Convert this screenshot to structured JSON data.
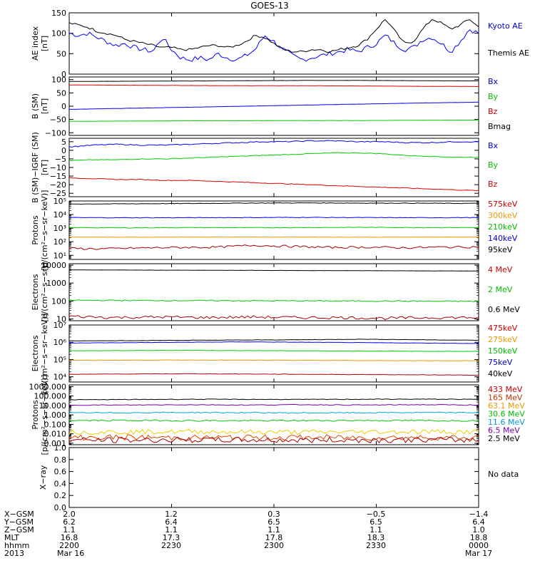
{
  "title": "GOES-13",
  "chart_data": [
    {
      "id": "ae",
      "type": "line",
      "ylabel": [
        "AE index",
        "[nT]"
      ],
      "ylim": [
        0,
        150
      ],
      "yticks": [
        {
          "v": 0,
          "t": "0"
        },
        {
          "v": 50,
          "t": "50"
        },
        {
          "v": 100,
          "t": "100"
        },
        {
          "v": 150,
          "t": "150"
        }
      ],
      "log": false,
      "legend": [
        {
          "text": "Kyoto AE",
          "color": "#0000cc"
        },
        {
          "text": "Themis AE",
          "color": "#000000"
        }
      ],
      "series": [
        {
          "name": "Kyoto AE",
          "color": "#0000ff",
          "values": [
            100,
            95,
            100,
            90,
            80,
            70,
            75,
            65,
            60,
            55,
            90,
            60,
            40,
            35,
            40,
            35,
            50,
            40,
            35,
            45,
            60,
            95,
            80,
            60,
            45,
            35,
            40,
            45,
            50,
            55,
            60,
            55,
            65,
            75,
            95,
            75,
            60,
            65,
            85,
            90,
            75,
            55,
            80,
            110,
            100
          ],
          "noise": 6
        },
        {
          "name": "Themis AE",
          "color": "#000000",
          "values": [
            125,
            120,
            115,
            105,
            100,
            95,
            85,
            80,
            75,
            70,
            65,
            65,
            60,
            60,
            65,
            70,
            70,
            65,
            70,
            80,
            95,
            90,
            75,
            60,
            55,
            55,
            60,
            60,
            55,
            60,
            65,
            70,
            85,
            110,
            135,
            105,
            75,
            80,
            110,
            135,
            125,
            110,
            120,
            135,
            115
          ],
          "noise": 3
        }
      ]
    },
    {
      "id": "b",
      "type": "line",
      "ylabel": [
        "B (SM)",
        "[nT]"
      ],
      "ylim": [
        -110,
        110
      ],
      "yticks": [
        {
          "v": -100,
          "t": "−100"
        },
        {
          "v": -50,
          "t": "−50"
        },
        {
          "v": 0,
          "t": "0"
        },
        {
          "v": 50,
          "t": "50"
        },
        {
          "v": 100,
          "t": "100"
        }
      ],
      "log": false,
      "legend": [
        {
          "text": "Bx",
          "color": "#0000cc"
        },
        {
          "text": "By",
          "color": "#00bb00"
        },
        {
          "text": "Bz",
          "color": "#cc0000"
        },
        {
          "text": "Bmag",
          "color": "#000000"
        }
      ],
      "series": [
        {
          "name": "Bmag",
          "color": "#000000",
          "values": [
            93,
            94,
            95,
            96,
            97,
            97,
            96,
            95
          ],
          "noise": 0.3
        },
        {
          "name": "Bz",
          "color": "#dd0000",
          "values": [
            80,
            79,
            78,
            77,
            77,
            76,
            75,
            74
          ],
          "noise": 0.3
        },
        {
          "name": "Bx",
          "color": "#0000ff",
          "values": [
            -12,
            -8,
            -4,
            0,
            4,
            8,
            12,
            15
          ],
          "noise": 0.3
        },
        {
          "name": "By",
          "color": "#00cc00",
          "values": [
            -57,
            -56,
            -55,
            -55,
            -54,
            -54,
            -53,
            -52
          ],
          "noise": 0.3
        }
      ]
    },
    {
      "id": "bdiff",
      "type": "line",
      "ylabel": [
        "B (SM)−IGRF (SM)",
        "[nT]"
      ],
      "ylim": [
        -27,
        7
      ],
      "yticks": [
        {
          "v": 5,
          "t": "5"
        },
        {
          "v": 0,
          "t": "0"
        },
        {
          "v": -5,
          "t": "−5"
        },
        {
          "v": -10,
          "t": "−10"
        },
        {
          "v": -15,
          "t": "−15"
        },
        {
          "v": -20,
          "t": "−20"
        },
        {
          "v": -25,
          "t": "−25"
        }
      ],
      "log": false,
      "legend": [
        {
          "text": "Bx",
          "color": "#0000cc"
        },
        {
          "text": "By",
          "color": "#00bb00"
        },
        {
          "text": "Bz",
          "color": "#cc0000"
        }
      ],
      "series": [
        {
          "name": "Bx",
          "color": "#0000ff",
          "values": [
            2,
            3,
            3.5,
            3,
            3,
            3.5,
            4,
            4.5,
            5,
            5,
            5.5,
            5.5,
            5,
            5,
            4.5,
            4.5,
            5,
            5
          ],
          "noise": 0.3
        },
        {
          "name": "By",
          "color": "#00cc00",
          "values": [
            -6,
            -5.5,
            -5.5,
            -5,
            -5,
            -4.5,
            -4,
            -3.5,
            -3,
            -2.5,
            -2,
            -1.5,
            -1.5,
            -2,
            -3,
            -3.5,
            -4,
            -4
          ],
          "noise": 0.2
        },
        {
          "name": "Bz",
          "color": "#dd0000",
          "values": [
            -16,
            -16.5,
            -17,
            -17,
            -17.5,
            -17.5,
            -18,
            -18.5,
            -19,
            -19.5,
            -20,
            -20.5,
            -21,
            -21.5,
            -22,
            -22.5,
            -23,
            -23.5
          ],
          "noise": 0.2
        }
      ]
    },
    {
      "id": "protons1",
      "type": "line",
      "ylabel": [
        "Protons",
        "[p/(cm²−s−sr−keV)]"
      ],
      "ylim": [
        5,
        100000
      ],
      "yticks": [
        {
          "v": 10,
          "t": "10¹"
        },
        {
          "v": 100,
          "t": "10²"
        },
        {
          "v": 1000,
          "t": "10³"
        },
        {
          "v": 10000,
          "t": "10⁴"
        },
        {
          "v": 100000,
          "t": "10⁵"
        }
      ],
      "log": true,
      "legend": [
        {
          "text": "575keV",
          "color": "#cc0000"
        },
        {
          "text": "300keV",
          "color": "#ee9900"
        },
        {
          "text": "210keV",
          "color": "#00bb00"
        },
        {
          "text": "140keV",
          "color": "#0000cc"
        },
        {
          "text": "95keV",
          "color": "#000000"
        }
      ],
      "series": [
        {
          "name": "95keV",
          "color": "#000000",
          "values": [
            60000,
            62000,
            65000,
            70000,
            72000,
            70000,
            68000,
            66000
          ],
          "noise": 0.02
        },
        {
          "name": "140keV",
          "color": "#0000ff",
          "values": [
            6000,
            5800,
            5900,
            6000,
            6200,
            6000,
            5900,
            6000
          ],
          "noise": 0.02
        },
        {
          "name": "210keV",
          "color": "#00cc00",
          "values": [
            1100,
            1050,
            1100,
            1080,
            1100,
            1150,
            1100,
            1100
          ],
          "noise": 0.02
        },
        {
          "name": "300keV",
          "color": "#ee9900",
          "values": [
            220,
            215,
            220,
            225,
            220,
            215,
            220,
            220
          ],
          "noise": 0.01
        },
        {
          "name": "575keV",
          "color": "#aa0000",
          "values": [
            32,
            30,
            35,
            38,
            40,
            55,
            45,
            38,
            40,
            36,
            40,
            42
          ],
          "noise": 0.08
        }
      ]
    },
    {
      "id": "electrons1",
      "type": "line",
      "ylabel": [
        "Electrons",
        "[e/(cm²−s−sr)]"
      ],
      "ylim": [
        8,
        12000
      ],
      "yticks": [
        {
          "v": 10,
          "t": "10"
        },
        {
          "v": 100,
          "t": "100"
        },
        {
          "v": 1000,
          "t": "1000"
        },
        {
          "v": 10000,
          "t": "10000"
        }
      ],
      "log": true,
      "legend": [
        {
          "text": "4 MeV",
          "color": "#cc0000"
        },
        {
          "text": "2 MeV",
          "color": "#00bb00"
        },
        {
          "text": "0.6 MeV",
          "color": "#000000"
        }
      ],
      "series": [
        {
          "name": "0.6 MeV",
          "color": "#000000",
          "values": [
            5400,
            5300,
            5200,
            5100,
            5000,
            4900,
            4800,
            4700
          ],
          "noise": 0.005
        },
        {
          "name": "2 MeV",
          "color": "#00cc00",
          "values": [
            110,
            108,
            106,
            104,
            102,
            100,
            98,
            96
          ],
          "noise": 0.03
        },
        {
          "name": "4 MeV",
          "color": "#aa0000",
          "values": [
            14,
            12,
            13,
            12,
            13,
            12,
            12,
            11,
            12,
            12
          ],
          "noise": 0.08
        }
      ]
    },
    {
      "id": "electrons2",
      "type": "line",
      "ylabel": [
        "Electrons",
        "[e/(cm²−s−sr−keV)]"
      ],
      "ylim": [
        5000,
        10000000
      ],
      "yticks": [
        {
          "v": 10000,
          "t": "10⁴"
        },
        {
          "v": 100000,
          "t": "10⁵"
        },
        {
          "v": 1000000,
          "t": "10⁶"
        },
        {
          "v": 10000000,
          "t": "10⁷"
        }
      ],
      "log": true,
      "legend": [
        {
          "text": "475keV",
          "color": "#cc0000"
        },
        {
          "text": "275keV",
          "color": "#ee9900"
        },
        {
          "text": "150keV",
          "color": "#00bb00"
        },
        {
          "text": "75keV",
          "color": "#0000cc"
        },
        {
          "text": "40keV",
          "color": "#000000"
        }
      ],
      "series": [
        {
          "name": "40keV",
          "color": "#000000",
          "values": [
            1200000,
            1250000,
            1300000,
            1350000,
            1400000,
            1500000,
            1400000,
            1300000
          ],
          "noise": 0.01
        },
        {
          "name": "75keV",
          "color": "#0000ff",
          "values": [
            900000,
            950000,
            1000000,
            1050000,
            1000000,
            950000,
            900000,
            850000
          ],
          "noise": 0.01
        },
        {
          "name": "150keV",
          "color": "#00cc00",
          "values": [
            320000,
            330000,
            340000,
            330000,
            320000,
            310000,
            300000,
            300000
          ],
          "noise": 0.01
        },
        {
          "name": "275keV",
          "color": "#ee9900",
          "values": [
            90000,
            92000,
            94000,
            92000,
            90000,
            88000,
            86000,
            85000
          ],
          "noise": 0.01
        },
        {
          "name": "475keV",
          "color": "#aa0000",
          "values": [
            14000,
            14500,
            15000,
            14500,
            14000,
            13500,
            13000,
            12500
          ],
          "noise": 0.01
        }
      ]
    },
    {
      "id": "protons2",
      "type": "line",
      "ylabel": [
        "Protons",
        "[p/(cm²−s−sr−keV)]"
      ],
      "ylim": [
        0.0007,
        1500
      ],
      "yticks": [
        {
          "v": 0.001,
          "t": "0.001"
        },
        {
          "v": 0.01,
          "t": "0.010"
        },
        {
          "v": 0.1,
          "t": "0.100"
        },
        {
          "v": 1,
          "t": "1.000"
        },
        {
          "v": 10,
          "t": "10.000"
        },
        {
          "v": 100,
          "t": "100.000"
        },
        {
          "v": 1000,
          "t": "1000.000"
        }
      ],
      "log": true,
      "legend": [
        {
          "text": "433 MeV",
          "color": "#cc0000"
        },
        {
          "text": "165 MeV",
          "color": "#cc3300"
        },
        {
          "text": "63.1 MeV",
          "color": "#ee9900"
        },
        {
          "text": "30.6 MeV",
          "color": "#00bb00"
        },
        {
          "text": "11.6 MeV",
          "color": "#0099dd"
        },
        {
          "text": "6.5 MeV",
          "color": "#7700aa"
        },
        {
          "text": "2.5 MeV",
          "color": "#000000"
        }
      ],
      "series": [
        {
          "name": "2.5 MeV",
          "color": "#000000",
          "values": [
            40,
            42,
            45,
            44,
            43,
            45,
            46,
            44
          ],
          "noise": 0.03
        },
        {
          "name": "6.5 MeV",
          "color": "#7700bb",
          "values": [
            11,
            11,
            12,
            11,
            12,
            11,
            12,
            11
          ],
          "noise": 0.04
        },
        {
          "name": "11.6 MeV",
          "color": "#00aadd",
          "values": [
            1.6,
            1.7,
            1.8,
            1.7,
            1.6,
            1.7,
            1.8,
            1.7
          ],
          "noise": 0.06
        },
        {
          "name": "30.6 MeV",
          "color": "#00cc00",
          "values": [
            0.25,
            0.26,
            0.25,
            0.24,
            0.25,
            0.26,
            0.25,
            0.25
          ],
          "noise": 0.08
        },
        {
          "name": "63.1 MeV",
          "color": "#eecc00",
          "values": [
            0.015,
            0.016,
            0.017,
            0.016,
            0.015,
            0.016,
            0.017,
            0.016
          ],
          "noise": 0.25
        },
        {
          "name": "165 MeV",
          "color": "#dd4400",
          "values": [
            0.004,
            0.0042,
            0.0038,
            0.004,
            0.0041,
            0.0039,
            0.004,
            0.004
          ],
          "noise": 0.3
        },
        {
          "name": "433 MeV",
          "color": "#aa0000",
          "values": [
            0.0022,
            0.0021,
            0.0023,
            0.0022,
            0.0021,
            0.0022,
            0.0023,
            0.0022
          ],
          "noise": 0.3
        }
      ]
    },
    {
      "id": "xray",
      "type": "line",
      "ylabel": [
        "X−ray",
        ""
      ],
      "ylim": [
        0,
        1
      ],
      "yticks": [
        {
          "v": 0,
          "t": "0.0"
        },
        {
          "v": 0.2,
          "t": "0.2"
        },
        {
          "v": 0.4,
          "t": "0.4"
        },
        {
          "v": 0.6,
          "t": "0.6"
        },
        {
          "v": 0.8,
          "t": "0.8"
        },
        {
          "v": 1,
          "t": "1.0"
        }
      ],
      "log": false,
      "legend": [
        {
          "text": "No data",
          "color": "#000000"
        }
      ],
      "series": []
    }
  ],
  "xaxis": {
    "rows": [
      {
        "label": "X−GSM",
        "values": [
          "2.0",
          "1.2",
          "0.3",
          "−0.5",
          "−1.4"
        ]
      },
      {
        "label": "Y−GSM",
        "values": [
          "6.2",
          "6.4",
          "6.5",
          "6.5",
          "6.4"
        ]
      },
      {
        "label": "Z−GSM",
        "values": [
          "1.1",
          "1.1",
          "1.1",
          "1.1",
          "1.0"
        ]
      },
      {
        "label": "MLT",
        "values": [
          "16.8",
          "17.3",
          "17.8",
          "18.3",
          "18.8"
        ]
      },
      {
        "label": "hhmm",
        "values": [
          "2200",
          "2230",
          "2300",
          "2330",
          "0000"
        ]
      },
      {
        "label": "2013",
        "values": [
          "Mar 16",
          "",
          "",
          "",
          "Mar 17"
        ]
      }
    ]
  }
}
